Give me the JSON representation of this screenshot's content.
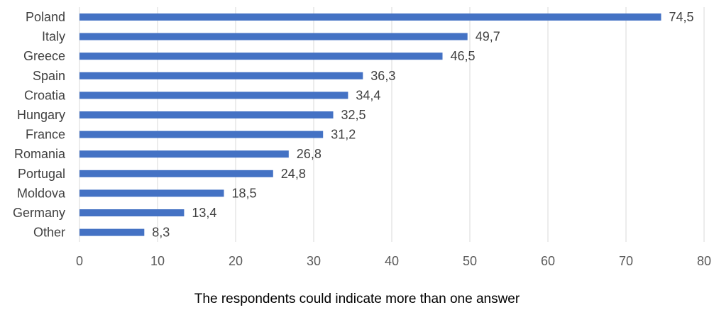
{
  "chart_data": {
    "type": "bar",
    "orientation": "horizontal",
    "categories": [
      "Poland",
      "Italy",
      "Greece",
      "Spain",
      "Croatia",
      "Hungary",
      "France",
      "Romania",
      "Portugal",
      "Moldova",
      "Germany",
      "Other"
    ],
    "values": [
      74.5,
      49.7,
      46.5,
      36.3,
      34.4,
      32.5,
      31.2,
      26.8,
      24.8,
      18.5,
      13.4,
      8.3
    ],
    "value_labels": [
      "74,5",
      "49,7",
      "46,5",
      "36,3",
      "34,4",
      "32,5",
      "31,2",
      "26,8",
      "24,8",
      "18,5",
      "13,4",
      "8,3"
    ],
    "xlim": [
      0,
      80
    ],
    "x_ticks": [
      0,
      10,
      20,
      30,
      40,
      50,
      60,
      70,
      80
    ],
    "grid": "vertical",
    "bar_color": "#4472C4",
    "grid_color": "#D9D9D9"
  },
  "footnote": "The respondents could indicate more than one answer"
}
